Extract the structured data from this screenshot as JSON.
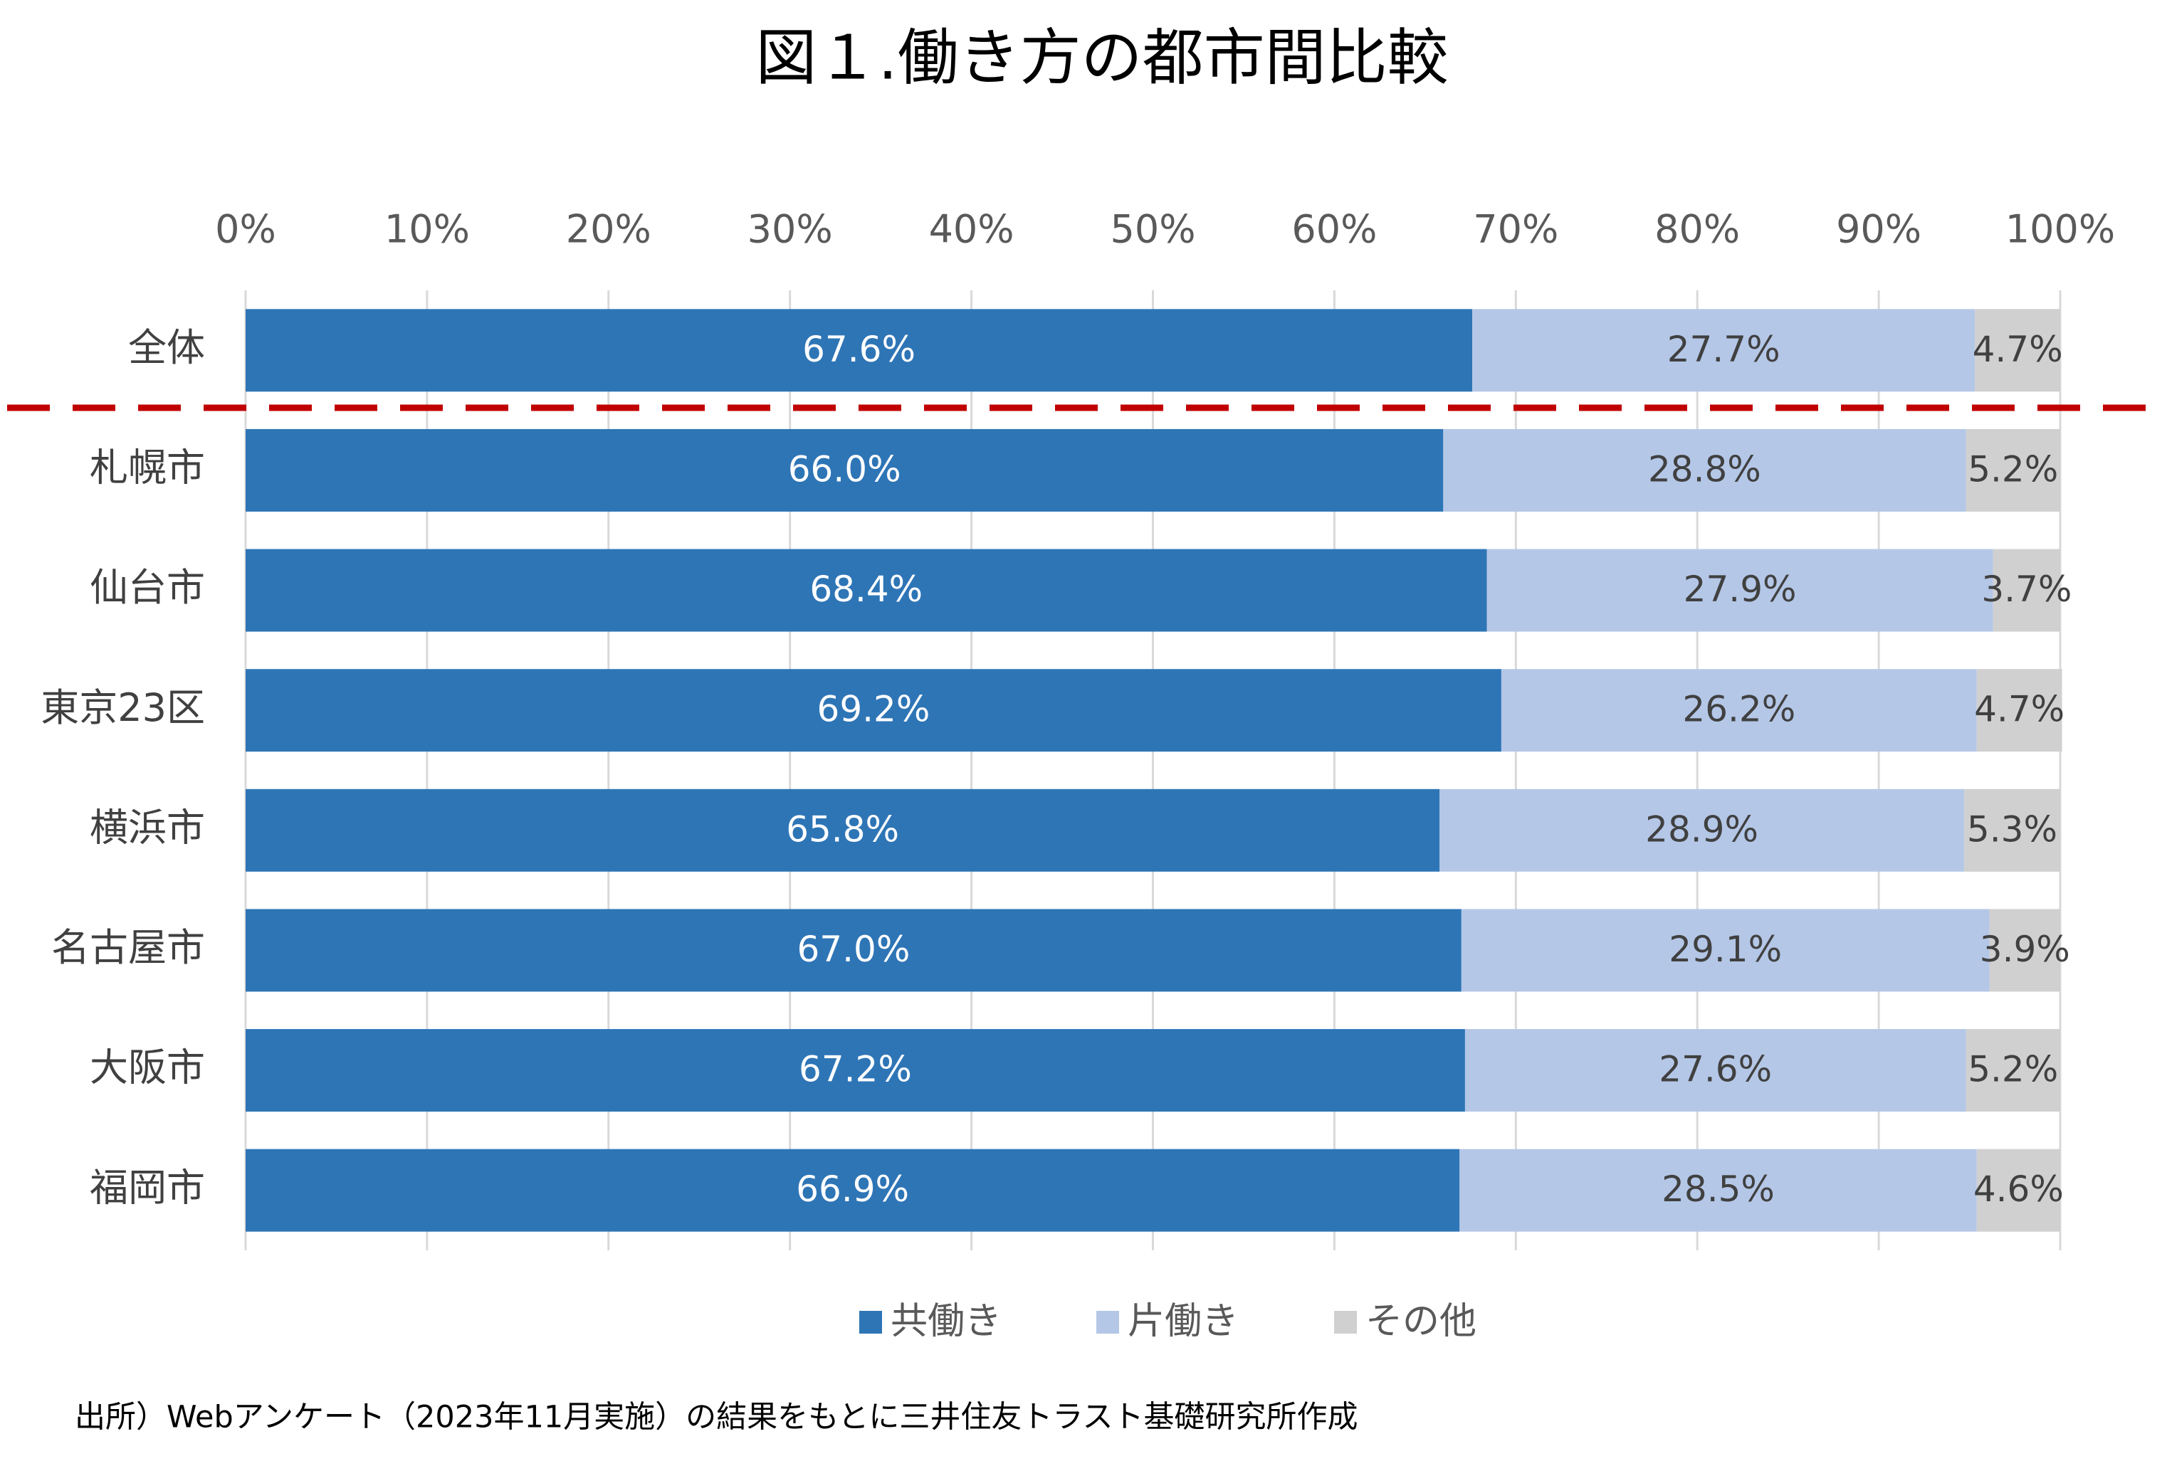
{
  "chart_data": {
    "type": "stacked-bar-horizontal",
    "title": "図１.働き方の都市間比較",
    "categories": [
      "全体",
      "札幌市",
      "仙台市",
      "東京23区",
      "横浜市",
      "名古屋市",
      "大阪市",
      "福岡市"
    ],
    "series": [
      {
        "name": "共働き",
        "color": "#2e75b6",
        "values": [
          67.6,
          66.0,
          68.4,
          69.2,
          65.8,
          67.0,
          67.2,
          66.9
        ],
        "value_labels": [
          "67.6%",
          "66.0%",
          "68.4%",
          "69.2%",
          "65.8%",
          "67.0%",
          "67.2%",
          "66.9%"
        ]
      },
      {
        "name": "片働き",
        "color": "#b4c7e7",
        "values": [
          27.7,
          28.8,
          27.9,
          26.2,
          28.9,
          29.1,
          27.6,
          28.5
        ],
        "value_labels": [
          "27.7%",
          "28.8%",
          "27.9%",
          "26.2%",
          "28.9%",
          "29.1%",
          "27.6%",
          "28.5%"
        ]
      },
      {
        "name": "その他",
        "color": "#d0d0d0",
        "values": [
          4.7,
          5.2,
          3.7,
          4.7,
          5.3,
          3.9,
          5.2,
          4.6
        ],
        "value_labels": [
          "4.7%",
          "5.2%",
          "3.7%",
          "4.7%",
          "5.3%",
          "3.9%",
          "5.2%",
          "4.6%"
        ]
      }
    ],
    "xlim": [
      0,
      100
    ],
    "xticks": [
      {
        "value": 0,
        "label": "0%"
      },
      {
        "value": 10,
        "label": "10%"
      },
      {
        "value": 20,
        "label": "20%"
      },
      {
        "value": 30,
        "label": "30%"
      },
      {
        "value": 40,
        "label": "40%"
      },
      {
        "value": 50,
        "label": "50%"
      },
      {
        "value": 60,
        "label": "60%"
      },
      {
        "value": 70,
        "label": "70%"
      },
      {
        "value": 80,
        "label": "80%"
      },
      {
        "value": 90,
        "label": "90%"
      },
      {
        "value": 100,
        "label": "100%"
      }
    ],
    "grid": true,
    "legend": "bottom",
    "source": "出所）Webアンケート（2023年11月実施）の結果をもとに三井住友トラスト基礎研究所作成"
  }
}
